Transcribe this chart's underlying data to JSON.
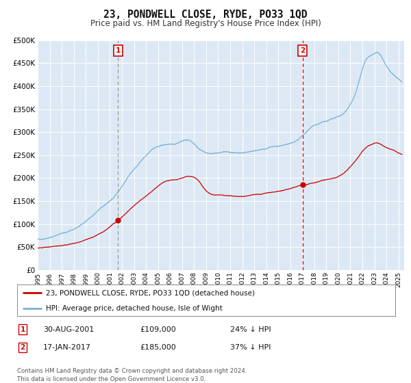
{
  "title": "23, PONDWELL CLOSE, RYDE, PO33 1QD",
  "subtitle": "Price paid vs. HM Land Registry's House Price Index (HPI)",
  "bg_color": "#dce9f5",
  "grid_color": "#c8d8e8",
  "hpi_color": "#7ab0d4",
  "price_color": "#cc0000",
  "sale1_date_label": "30-AUG-2001",
  "sale1_price": 109000,
  "sale1_price_str": "£109,000",
  "sale1_hpi_pct": "24% ↓ HPI",
  "sale2_date_label": "17-JAN-2017",
  "sale2_price": 185000,
  "sale2_price_str": "£185,000",
  "sale2_hpi_pct": "37% ↓ HPI",
  "legend_line1": "23, PONDWELL CLOSE, RYDE, PO33 1QD (detached house)",
  "legend_line2": "HPI: Average price, detached house, Isle of Wight",
  "footer": "Contains HM Land Registry data © Crown copyright and database right 2024.\nThis data is licensed under the Open Government Licence v3.0.",
  "sale1_x": 2001.66,
  "sale2_x": 2017.04,
  "ylim_max": 500000,
  "xlim_start": 1995.0,
  "xlim_end": 2025.5
}
